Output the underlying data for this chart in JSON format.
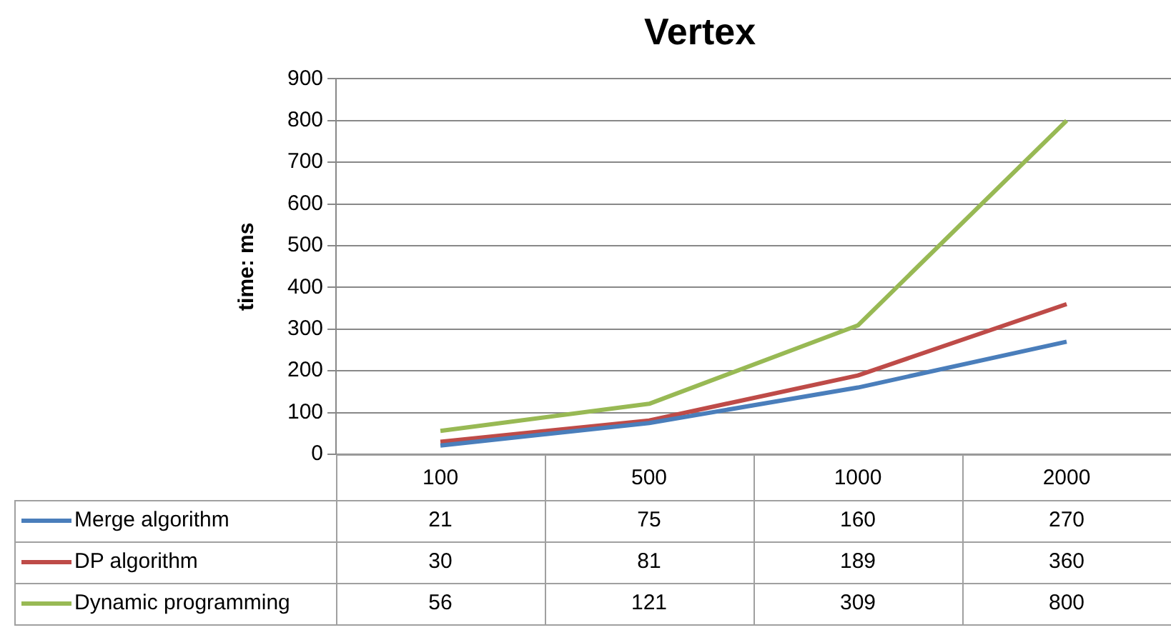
{
  "chart_data": {
    "type": "line",
    "title": "Vertex",
    "ylabel": "time: ms",
    "categories": [
      "100",
      "500",
      "1000",
      "2000"
    ],
    "series": [
      {
        "name": "Merge algorithm",
        "color": "#4a7ebb",
        "values": [
          21,
          75,
          160,
          270
        ]
      },
      {
        "name": "DP algorithm",
        "color": "#be4b48",
        "values": [
          30,
          81,
          189,
          360
        ]
      },
      {
        "name": "Dynamic programming",
        "color": "#98b954",
        "values": [
          56,
          121,
          309,
          800
        ]
      }
    ],
    "ylim": [
      0,
      900
    ],
    "yticks": [
      0,
      100,
      200,
      300,
      400,
      500,
      600,
      700,
      800,
      900
    ],
    "grid": "y",
    "legend": "bottom",
    "data_labels": true,
    "marker": "none",
    "line_style": "solid"
  }
}
